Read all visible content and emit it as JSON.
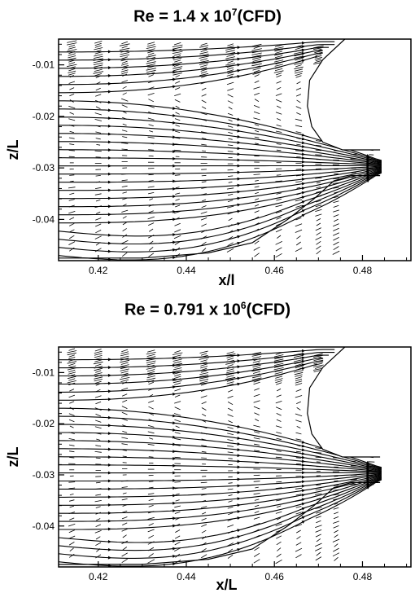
{
  "chart_data": [
    {
      "type": "streamline",
      "title_base": "Re = 1.4 x 10",
      "title_exp": "7",
      "title_suffix": "(CFD)",
      "xlabel": "x/l",
      "ylabel": "z/L",
      "xlim": [
        0.411,
        0.491
      ],
      "ylim": [
        -0.048,
        -0.005
      ],
      "xticks": [
        "0.42",
        "0.44",
        "0.46",
        "0.48"
      ],
      "xtick_values": [
        0.42,
        0.44,
        0.46,
        0.48
      ],
      "yticks": [
        "-0.01",
        "-0.02",
        "-0.03",
        "-0.04"
      ],
      "ytick_values": [
        -0.01,
        -0.02,
        -0.03,
        -0.04
      ],
      "body_profile": [
        [
          0.476,
          -0.005
        ],
        [
          0.471,
          -0.009
        ],
        [
          0.468,
          -0.013
        ],
        [
          0.4675,
          -0.018
        ],
        [
          0.4685,
          -0.022
        ],
        [
          0.471,
          -0.025
        ],
        [
          0.4755,
          -0.0265
        ],
        [
          0.484,
          -0.0265
        ]
      ],
      "body_lower": [
        [
          0.484,
          -0.0315
        ],
        [
          0.4775,
          -0.0315
        ],
        [
          0.4735,
          -0.0325
        ],
        [
          0.469,
          -0.036
        ],
        [
          0.463,
          -0.04
        ],
        [
          0.455,
          -0.0445
        ],
        [
          0.445,
          -0.0465
        ],
        [
          0.43,
          -0.0475
        ],
        [
          0.411,
          -0.0475
        ]
      ]
    },
    {
      "type": "streamline",
      "title_base": "Re = 0.791 x 10",
      "title_exp": "6",
      "title_suffix": "(CFD)",
      "xlabel": "x/L",
      "ylabel": "z/L",
      "xlim": [
        0.411,
        0.491
      ],
      "ylim": [
        -0.048,
        -0.005
      ],
      "xticks": [
        "0.42",
        "0.44",
        "0.46",
        "0.48"
      ],
      "xtick_values": [
        0.42,
        0.44,
        0.46,
        0.48
      ],
      "yticks": [
        "-0.01",
        "-0.02",
        "-0.03",
        "-0.04"
      ],
      "ytick_values": [
        -0.01,
        -0.02,
        -0.03,
        -0.04
      ],
      "body_profile": [
        [
          0.476,
          -0.005
        ],
        [
          0.471,
          -0.009
        ],
        [
          0.468,
          -0.013
        ],
        [
          0.4675,
          -0.018
        ],
        [
          0.4685,
          -0.022
        ],
        [
          0.471,
          -0.025
        ],
        [
          0.4755,
          -0.0265
        ],
        [
          0.484,
          -0.0265
        ]
      ],
      "body_lower": [
        [
          0.484,
          -0.0315
        ],
        [
          0.4775,
          -0.0315
        ],
        [
          0.4735,
          -0.0325
        ],
        [
          0.469,
          -0.036
        ],
        [
          0.463,
          -0.04
        ],
        [
          0.455,
          -0.0445
        ],
        [
          0.445,
          -0.0465
        ],
        [
          0.43,
          -0.0475
        ],
        [
          0.411,
          -0.0475
        ]
      ]
    }
  ]
}
